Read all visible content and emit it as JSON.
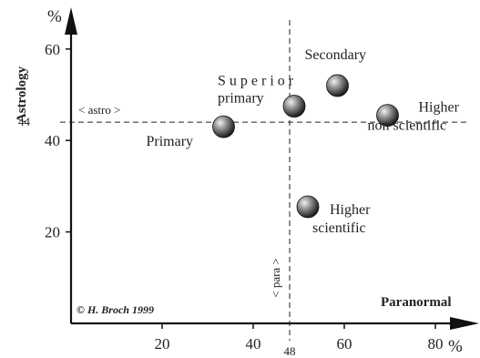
{
  "chart_data": {
    "type": "scatter",
    "title": "",
    "xlabel": "Paranormal",
    "ylabel": "Astrology",
    "x_unit": "%",
    "y_unit": "%",
    "xlim": [
      0,
      84
    ],
    "ylim": [
      0,
      70
    ],
    "x_ticks": [
      20,
      40,
      60,
      80
    ],
    "y_ticks": [
      20,
      40,
      60
    ],
    "grid": false,
    "points": [
      {
        "label": "Primary",
        "x": 33.5,
        "y": 43
      },
      {
        "label": "Superior primary",
        "x": 49,
        "y": 47.5
      },
      {
        "label": "Secondary",
        "x": 58.5,
        "y": 52
      },
      {
        "label": "Higher non scientific",
        "x": 69.5,
        "y": 45.5
      },
      {
        "label": "Higher scientific",
        "x": 52,
        "y": 25.5
      }
    ],
    "reference_lines": {
      "horizontal": {
        "value": 44,
        "value_label": "44",
        "label": "< astro >"
      },
      "vertical": {
        "value": 48,
        "value_label": "48",
        "label": "< para >"
      }
    },
    "credit": "© H. Broch 1999"
  }
}
